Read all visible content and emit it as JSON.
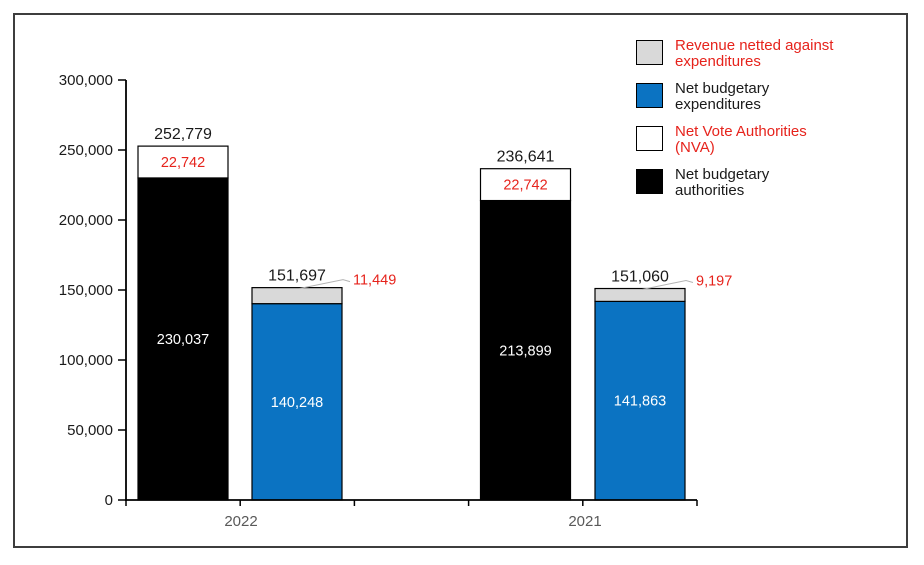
{
  "figure": {
    "background": "#ffffff",
    "border_color": "#3d3d3d"
  },
  "colors": {
    "net_budgetary_authorities": "#000000",
    "net_vote_authorities": "#ffffff",
    "net_budgetary_expenditures": "#0b73c2",
    "revenue_netted_against_expenditures": "#d9d9d9",
    "red_label": "#e6231c",
    "total_text": "#1a1a1a",
    "axis_text": "#1a1a1a",
    "year_text": "#595959",
    "leader_line": "#b3b3b3",
    "segment_border": "#000000"
  },
  "legend": {
    "items": [
      {
        "key": "revenue_netted_against_expenditures",
        "label": "Revenue netted against expenditures",
        "lines": [
          "Revenue netted against",
          "expenditures"
        ],
        "swatch": "#d9d9d9",
        "text_color": "#e6231c"
      },
      {
        "key": "net_budgetary_expenditures",
        "label": "Net budgetary expenditures",
        "lines": [
          "Net budgetary",
          "expenditures"
        ],
        "swatch": "#0b73c2",
        "text_color": "#1a1a1a"
      },
      {
        "key": "net_vote_authorities",
        "label": "Net Vote Authorities (NVA)",
        "lines": [
          "Net Vote Authorities",
          "(NVA)"
        ],
        "swatch": "#ffffff",
        "text_color": "#e6231c"
      },
      {
        "key": "net_budgetary_authorities",
        "label": "Net budgetary authorities",
        "lines": [
          "Net budgetary",
          "authorities"
        ],
        "swatch": "#000000",
        "text_color": "#1a1a1a"
      }
    ]
  },
  "chart_data": {
    "type": "bar",
    "stacked": true,
    "title": "",
    "xlabel": "",
    "ylabel": "",
    "ylim": [
      0,
      300000
    ],
    "grid": false,
    "legend_position": "top-right",
    "y_ticks": [
      {
        "value": 0,
        "label": "0"
      },
      {
        "value": 50000,
        "label": "50,000"
      },
      {
        "value": 100000,
        "label": "100,000"
      },
      {
        "value": 150000,
        "label": "150,000"
      },
      {
        "value": 200000,
        "label": "200,000"
      },
      {
        "value": 250000,
        "label": "250,000"
      },
      {
        "value": 300000,
        "label": "300,000"
      }
    ],
    "categories": [
      "2022",
      "2021"
    ],
    "groups": [
      {
        "category": "2022",
        "bars": [
          {
            "name": "authorities",
            "total": 252779,
            "total_label": "252,779",
            "segments": [
              {
                "key": "net_budgetary_authorities",
                "series": "Net budgetary authorities",
                "value": 230037,
                "label": "230,037",
                "label_color": "#ffffff",
                "fill": "#000000"
              },
              {
                "key": "net_vote_authorities",
                "series": "Net Vote Authorities (NVA)",
                "value": 22742,
                "label": "22,742",
                "label_color": "#e6231c",
                "fill": "#ffffff"
              }
            ]
          },
          {
            "name": "expenditures",
            "total": 151697,
            "total_label": "151,697",
            "segments": [
              {
                "key": "net_budgetary_expenditures",
                "series": "Net budgetary expenditures",
                "value": 140248,
                "label": "140,248",
                "label_color": "#ffffff",
                "fill": "#0b73c2"
              },
              {
                "key": "revenue_netted_against_expenditures",
                "series": "Revenue netted against expenditures",
                "value": 11449,
                "label": "11,449",
                "label_color": "#e6231c",
                "fill": "#d9d9d9",
                "label_outside": true
              }
            ]
          }
        ]
      },
      {
        "category": "2021",
        "bars": [
          {
            "name": "authorities",
            "total": 236641,
            "total_label": "236,641",
            "segments": [
              {
                "key": "net_budgetary_authorities",
                "series": "Net budgetary authorities",
                "value": 213899,
                "label": "213,899",
                "label_color": "#ffffff",
                "fill": "#000000"
              },
              {
                "key": "net_vote_authorities",
                "series": "Net Vote Authorities (NVA)",
                "value": 22742,
                "label": "22,742",
                "label_color": "#e6231c",
                "fill": "#ffffff"
              }
            ]
          },
          {
            "name": "expenditures",
            "total": 151060,
            "total_label": "151,060",
            "segments": [
              {
                "key": "net_budgetary_expenditures",
                "series": "Net budgetary expenditures",
                "value": 141863,
                "label": "141,863",
                "label_color": "#ffffff",
                "fill": "#0b73c2"
              },
              {
                "key": "revenue_netted_against_expenditures",
                "series": "Revenue netted against expenditures",
                "value": 9197,
                "label": "9,197",
                "label_color": "#e6231c",
                "fill": "#d9d9d9",
                "label_outside": true
              }
            ]
          }
        ]
      }
    ]
  }
}
